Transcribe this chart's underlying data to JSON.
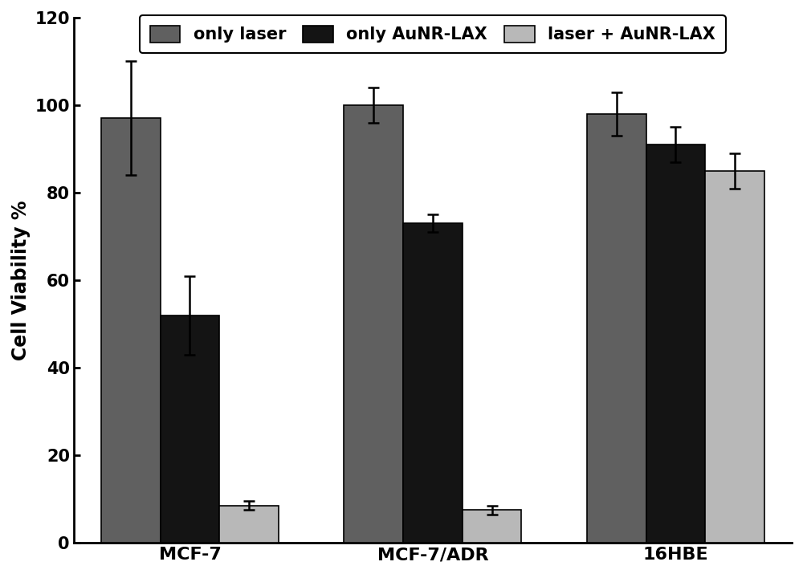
{
  "groups": [
    "MCF-7",
    "MCF-7/ADR",
    "16HBE"
  ],
  "series": [
    {
      "label": "only laser",
      "color": "#606060",
      "values": [
        97,
        100,
        98
      ],
      "errors": [
        13,
        4,
        5
      ]
    },
    {
      "label": "only AuNR-LAX",
      "color": "#141414",
      "values": [
        52,
        73,
        91
      ],
      "errors": [
        9,
        2,
        4
      ]
    },
    {
      "label": "laser + AuNR-LAX",
      "color": "#b8b8b8",
      "values": [
        8.5,
        7.5,
        85
      ],
      "errors": [
        1,
        1,
        4
      ]
    }
  ],
  "ylabel": "Cell Viability %",
  "ylim": [
    0,
    120
  ],
  "yticks": [
    0,
    20,
    40,
    60,
    80,
    100,
    120
  ],
  "bar_width": 0.28,
  "group_positions": [
    0.42,
    1.42,
    2.42
  ],
  "legend_fontsize": 15,
  "axis_label_fontsize": 17,
  "tick_fontsize": 15,
  "tick_label_fontsize": 16,
  "background_color": "#ffffff",
  "edge_color": "#000000",
  "error_cap_size": 5,
  "error_line_width": 1.8,
  "error_color": "#000000"
}
